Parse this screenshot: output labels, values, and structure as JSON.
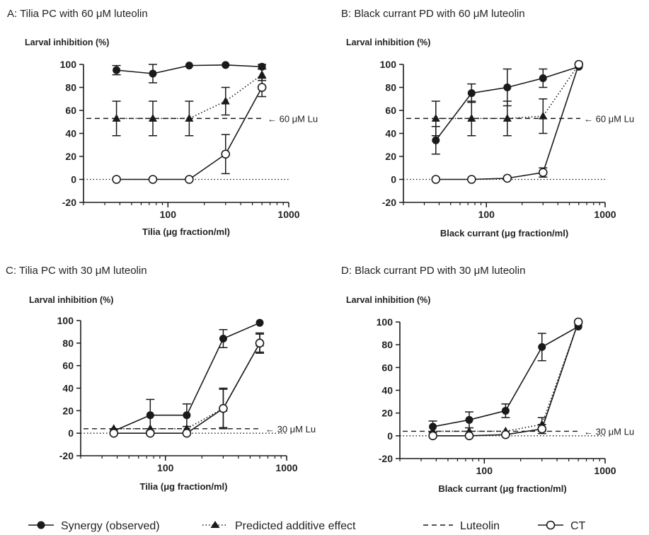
{
  "colors": {
    "ink": "#1a1a1a",
    "background": "#ffffff"
  },
  "legend": {
    "synergy": "Synergy (observed)",
    "predicted": "Predicted additive effect",
    "luteolin": "Luteolin",
    "ct": "CT"
  },
  "chart_data": [
    {
      "type": "line",
      "title": "A: Tilia PC with 60 μM luteolin",
      "ylabel": "Larval inhibition (%)",
      "xlabel": "Tilia (μg fraction/ml)",
      "xscale": "log",
      "xlim": [
        20,
        1000
      ],
      "ylim": [
        -20,
        100
      ],
      "xticks": [
        "100",
        "1000"
      ],
      "yticks": [
        "100",
        "80",
        "60",
        "40",
        "20",
        "0",
        "-20"
      ],
      "reference": {
        "value": 53,
        "label": "← 60 μM Lu"
      },
      "series": [
        {
          "name": "Synergy (observed)",
          "marker": "filled-circle",
          "line": "solid",
          "x": [
            37.5,
            75,
            150,
            300,
            600
          ],
          "y": [
            95,
            92,
            99,
            99.5,
            98
          ],
          "err": [
            4,
            8,
            0,
            0,
            2
          ]
        },
        {
          "name": "Predicted additive effect",
          "marker": "filled-triangle",
          "line": "dotted",
          "x": [
            37.5,
            75,
            150,
            300,
            600
          ],
          "y": [
            53,
            53,
            53,
            68,
            91
          ],
          "err": [
            15,
            15,
            15,
            12,
            5
          ]
        },
        {
          "name": "CT",
          "marker": "open-circle",
          "line": "solid",
          "x": [
            37.5,
            75,
            150,
            300,
            600
          ],
          "y": [
            0,
            0,
            0,
            22,
            80
          ],
          "err": [
            0,
            0,
            0,
            17,
            8
          ]
        }
      ]
    },
    {
      "type": "line",
      "title": "B: Black currant PD with 60 μM luteolin",
      "ylabel": "Larval inhibition (%)",
      "xlabel": "Black currant (μg fraction/ml)",
      "xscale": "log",
      "xlim": [
        20,
        1000
      ],
      "ylim": [
        -20,
        100
      ],
      "xticks": [
        "100",
        "1000"
      ],
      "yticks": [
        "100",
        "80",
        "60",
        "40",
        "20",
        "0",
        "-20"
      ],
      "reference": {
        "value": 53,
        "label": "← 60 μM Lu"
      },
      "series": [
        {
          "name": "Synergy (observed)",
          "marker": "filled-circle",
          "line": "solid",
          "x": [
            37.5,
            75,
            150,
            300,
            600
          ],
          "y": [
            34,
            75,
            80,
            88,
            98
          ],
          "err": [
            12,
            8,
            16,
            8,
            0
          ]
        },
        {
          "name": "Predicted additive effect",
          "marker": "filled-triangle",
          "line": "dotted",
          "x": [
            37.5,
            75,
            150,
            300,
            600
          ],
          "y": [
            53,
            53,
            53,
            55,
            100
          ],
          "err": [
            15,
            15,
            15,
            15,
            0
          ]
        },
        {
          "name": "CT",
          "marker": "open-circle",
          "line": "solid",
          "x": [
            37.5,
            75,
            150,
            300,
            600
          ],
          "y": [
            0,
            0,
            1,
            6,
            100
          ],
          "err": [
            0,
            0,
            0,
            4,
            0
          ]
        }
      ]
    },
    {
      "type": "line",
      "title": "C: Tilia PC with 30 μM luteolin",
      "ylabel": "Larval inhibition (%)",
      "xlabel": "Tilia (μg fraction/ml)",
      "xscale": "log",
      "xlim": [
        20,
        1000
      ],
      "ylim": [
        -20,
        100
      ],
      "xticks": [
        "100",
        "1000"
      ],
      "yticks": [
        "100",
        "80",
        "60",
        "40",
        "20",
        "0",
        "-20"
      ],
      "reference": {
        "value": 4,
        "label": "← 30 μM Lu"
      },
      "series": [
        {
          "name": "Synergy (observed)",
          "marker": "filled-circle",
          "line": "solid",
          "x": [
            37.5,
            75,
            150,
            300,
            600
          ],
          "y": [
            2,
            16,
            16,
            84,
            98
          ],
          "err": [
            0,
            14,
            10,
            8,
            0
          ]
        },
        {
          "name": "Predicted additive effect",
          "marker": "filled-triangle",
          "line": "dotted",
          "x": [
            37.5,
            75,
            150,
            300,
            600
          ],
          "y": [
            4,
            4,
            4,
            22,
            80
          ],
          "err": [
            0,
            0,
            0,
            18,
            9
          ]
        },
        {
          "name": "CT",
          "marker": "open-circle",
          "line": "solid",
          "x": [
            37.5,
            75,
            150,
            300,
            600
          ],
          "y": [
            0,
            0,
            0,
            22,
            80
          ],
          "err": [
            0,
            0,
            0,
            17,
            8
          ]
        }
      ]
    },
    {
      "type": "line",
      "title": "D: Black currant PD with 30 μM luteolin",
      "ylabel": "Larval inhibition (%)",
      "xlabel": "Black currant (μg fraction/ml)",
      "xscale": "log",
      "xlim": [
        20,
        1000
      ],
      "ylim": [
        -20,
        100
      ],
      "xticks": [
        "100",
        "1000"
      ],
      "yticks": [
        "100",
        "80",
        "60",
        "40",
        "20",
        "0",
        "-20"
      ],
      "reference": {
        "value": 4,
        "label": "← 30 μM Lu"
      },
      "series": [
        {
          "name": "Synergy (observed)",
          "marker": "filled-circle",
          "line": "solid",
          "x": [
            37.5,
            75,
            150,
            300,
            600
          ],
          "y": [
            8,
            14,
            22,
            78,
            96
          ],
          "err": [
            5,
            7,
            6,
            12,
            0
          ]
        },
        {
          "name": "Predicted additive effect",
          "marker": "filled-triangle",
          "line": "dotted",
          "x": [
            37.5,
            75,
            150,
            300,
            600
          ],
          "y": [
            4,
            4,
            4,
            10,
            100
          ],
          "err": [
            0,
            0,
            0,
            6,
            0
          ]
        },
        {
          "name": "CT",
          "marker": "open-circle",
          "line": "solid",
          "x": [
            37.5,
            75,
            150,
            300,
            600
          ],
          "y": [
            0,
            0,
            1,
            6,
            100
          ],
          "err": [
            0,
            0,
            0,
            4,
            0
          ]
        }
      ]
    }
  ]
}
